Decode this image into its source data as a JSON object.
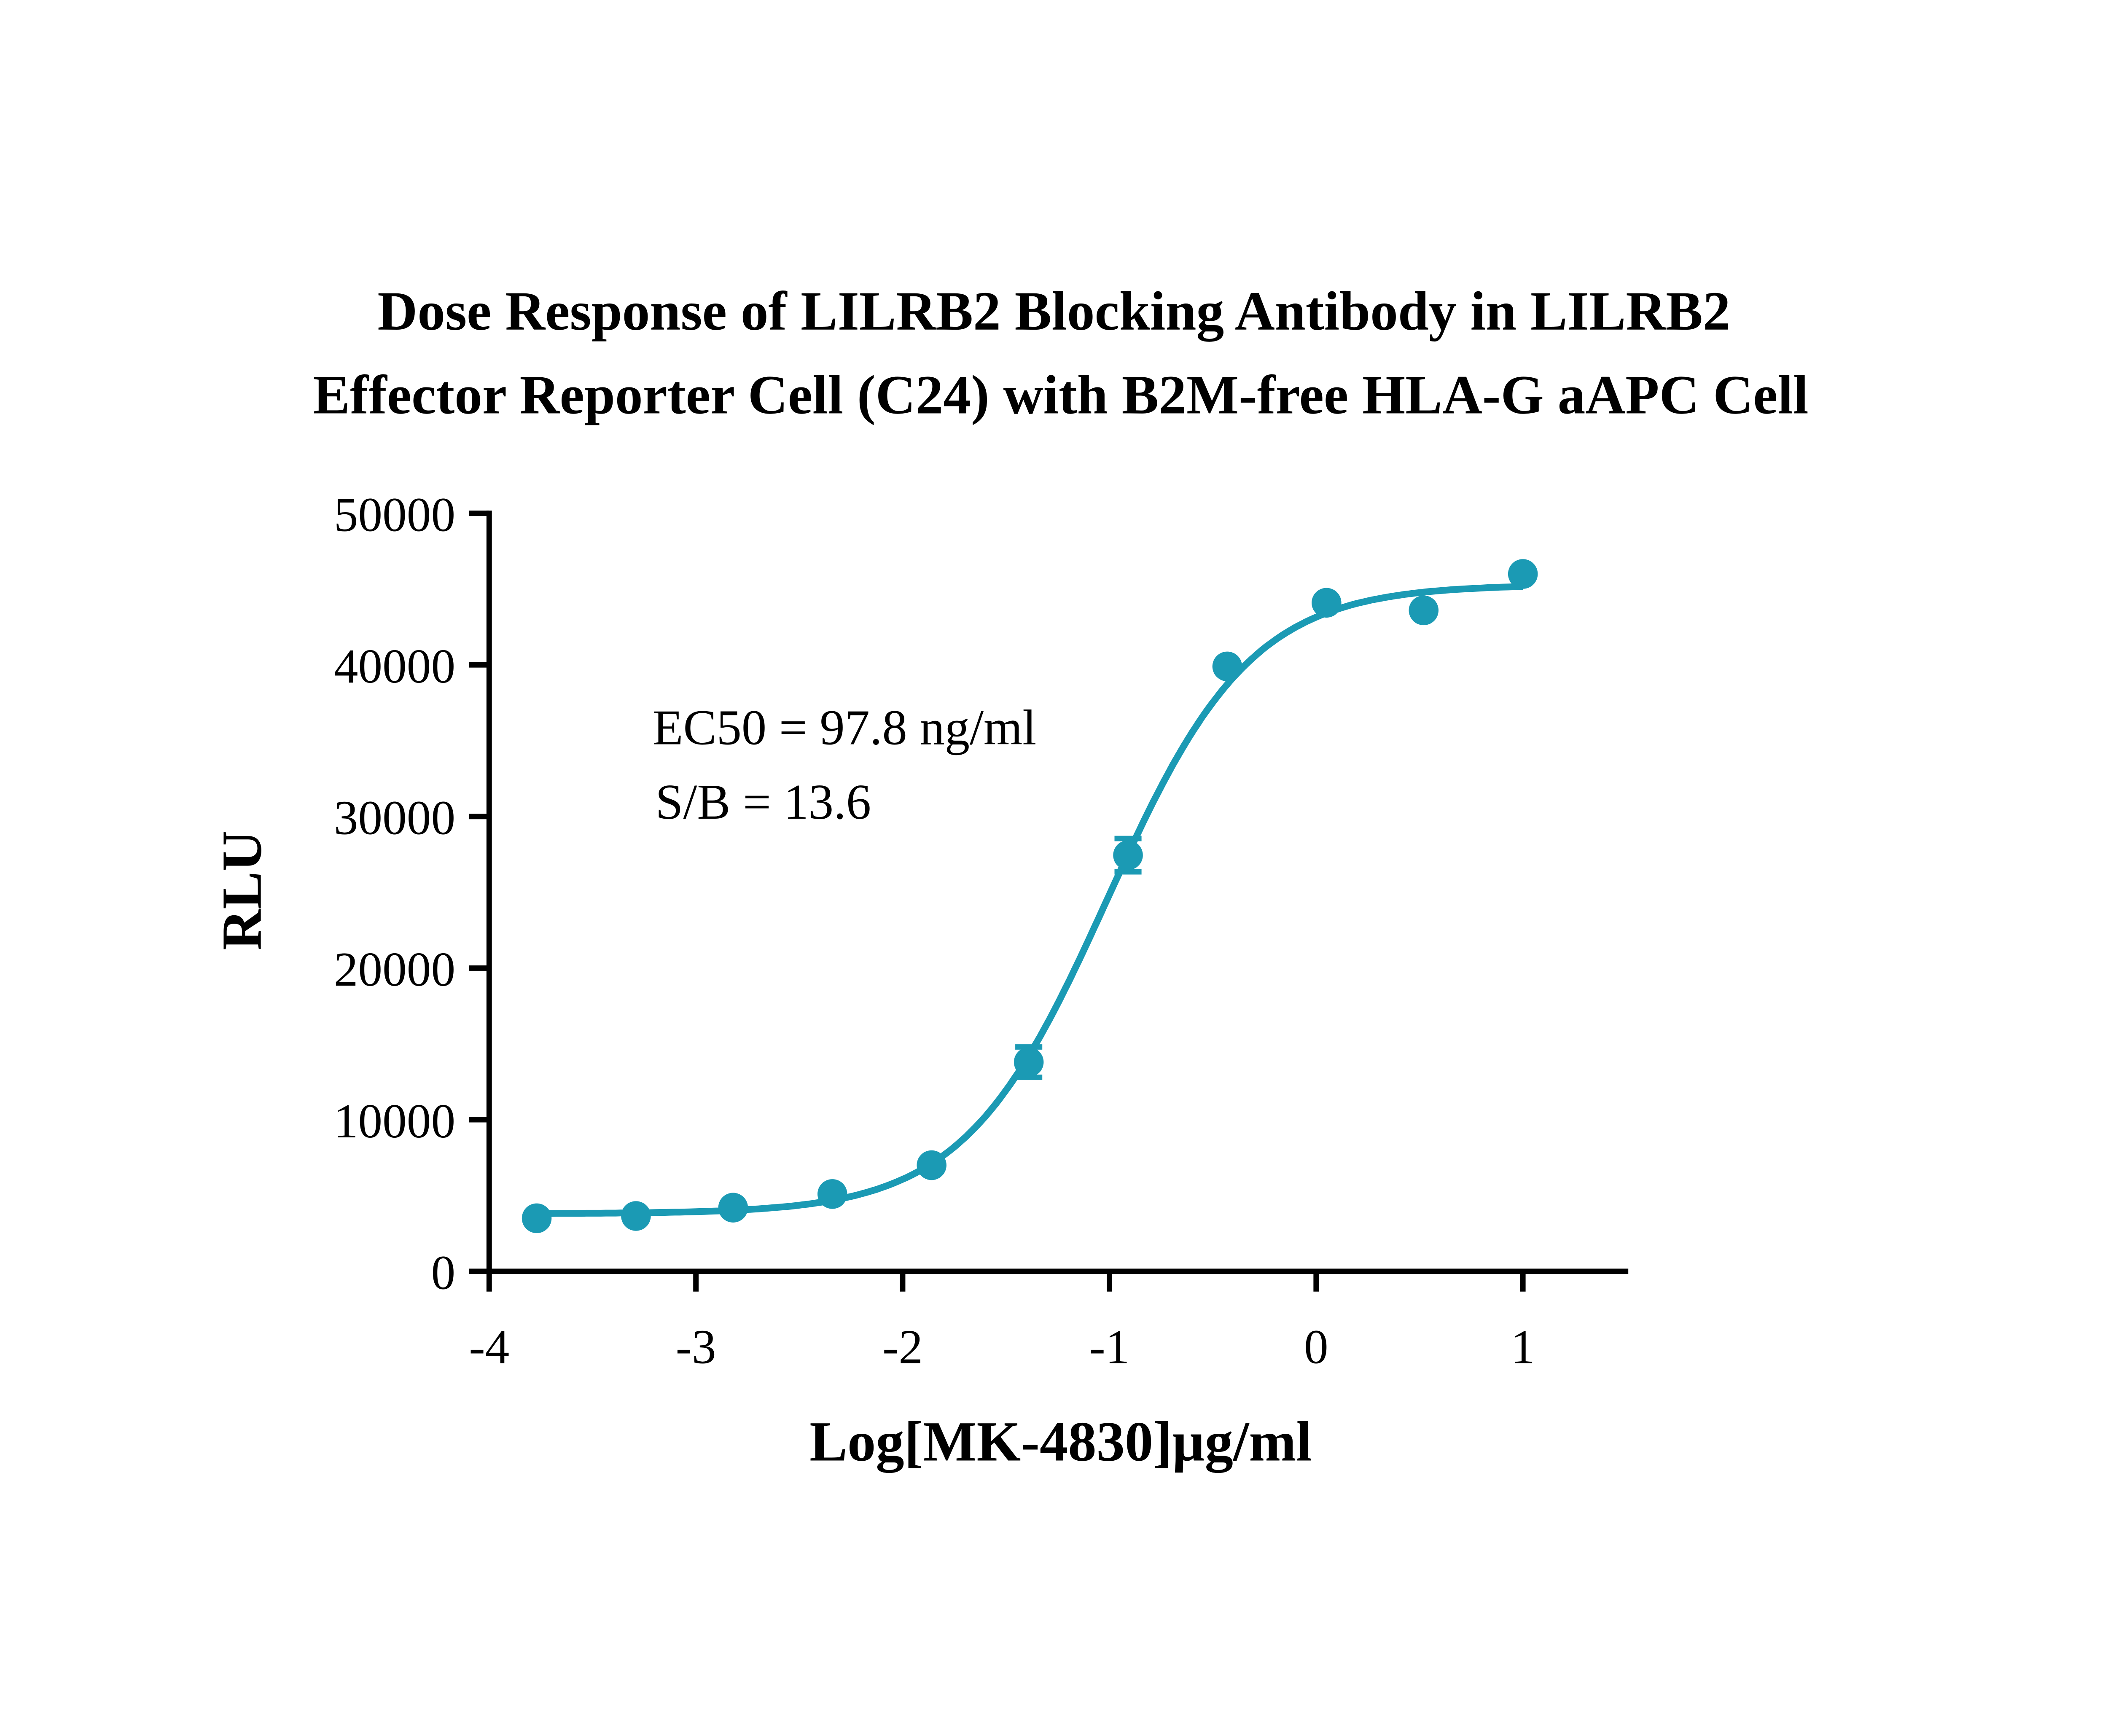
{
  "chart_data": {
    "type": "scatter",
    "title_lines": [
      "Dose Response of LILRB2 Blocking Antibody in LILRB2",
      "Effector Reporter Cell (C24) with B2M-free HLA-G aAPC Cell"
    ],
    "xlabel": "Log[MK-4830]µg/ml",
    "ylabel": "RLU",
    "xlim": [
      -4,
      1.5
    ],
    "ylim": [
      0,
      50000
    ],
    "xticks": [
      -4,
      -3,
      -2,
      -1,
      0,
      1
    ],
    "xtick_labels": [
      "-4",
      "-3",
      "-2",
      "-1",
      "0",
      "1"
    ],
    "yticks": [
      0,
      10000,
      20000,
      30000,
      40000,
      50000
    ],
    "ytick_labels": [
      "0",
      "10000",
      "20000",
      "30000",
      "40000",
      "50000"
    ],
    "grid": false,
    "color": "#1b9ab4",
    "series": [
      {
        "x": [
          -3.77,
          -3.29,
          -2.82,
          -2.34,
          -1.86,
          -1.39,
          -0.91,
          -0.43,
          0.05,
          0.52,
          1.0
        ],
        "y": [
          3500,
          3650,
          4200,
          5100,
          7000,
          13800,
          27450,
          39900,
          44100,
          43600,
          46000
        ],
        "error": [
          0,
          0,
          0,
          0,
          0,
          1000,
          1100,
          0,
          0,
          0,
          0
        ]
      }
    ],
    "fit": {
      "model": "4PL",
      "bottom": 3800,
      "top": 45300,
      "logEC50": -1.01,
      "hill": 1.25
    },
    "annotations": [
      "EC50 = 97.8 ng/ml",
      "S/B = 13.6"
    ]
  }
}
